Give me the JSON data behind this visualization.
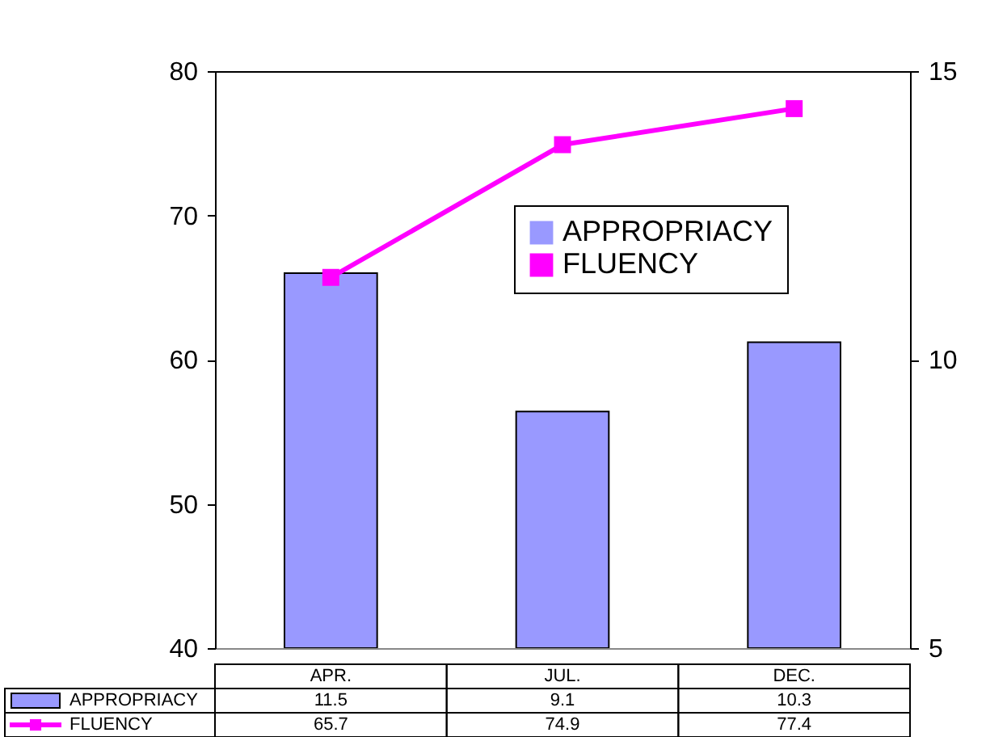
{
  "chart_data": {
    "type": "bar",
    "categories": [
      "APR.",
      "JUL.",
      "DEC."
    ],
    "series": [
      {
        "name": "APPROPRIACY",
        "axis": "y2",
        "color": "#9999ff",
        "values": [
          11.5,
          9.1,
          10.3
        ]
      },
      {
        "name": "FLUENCY",
        "type": "line",
        "color": "#ff00ff",
        "marker": "square",
        "values": [
          65.7,
          74.9,
          77.4
        ]
      }
    ],
    "ylim": [
      40,
      80
    ],
    "yticks": [
      40,
      50,
      60,
      70,
      80
    ],
    "y2lim": [
      5,
      15
    ],
    "y2ticks": [
      5,
      10,
      15
    ],
    "legend": "right",
    "grid": false,
    "data_labels": true
  }
}
